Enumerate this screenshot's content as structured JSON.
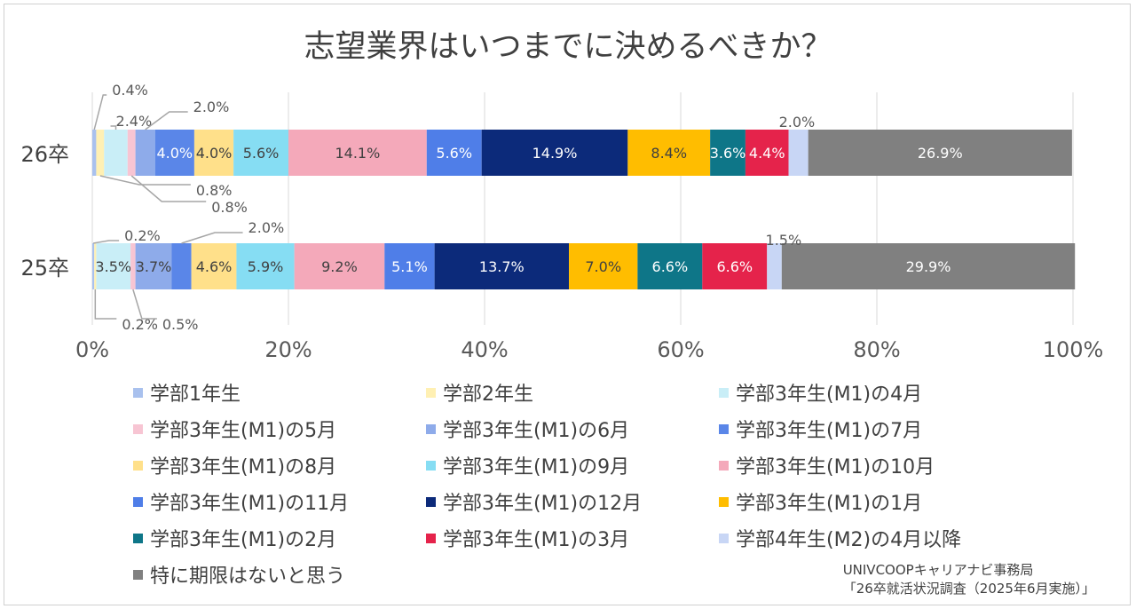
{
  "source_lines": [
    "UNIVCOOPキャリアナビ事務局",
    "「26卒就活状況調査（2025年6月実施）」"
  ],
  "chart_data": {
    "type": "bar",
    "orientation": "horizontal",
    "stacked": true,
    "title": "志望業界はいつまでに決めるべきか？",
    "categories": [
      "26卒",
      "25卒"
    ],
    "x_ticks": [
      "0%",
      "20%",
      "40%",
      "60%",
      "80%",
      "100%"
    ],
    "xlim": [
      0,
      100
    ],
    "grid": "vertical",
    "legend_position": "bottom",
    "series": [
      {
        "name": "学部1年生",
        "color": "#A9C1EE",
        "values": [
          0.4,
          0.2
        ],
        "labels": [
          "0.4%",
          "0.2%"
        ],
        "legend_label": "学部1年生"
      },
      {
        "name": "学部2年生",
        "color": "#FFF0B3",
        "values": [
          0.8,
          0.2
        ],
        "labels": [
          "0.8%",
          "0.2%"
        ],
        "legend_label": "学部2年生"
      },
      {
        "name": "学部3年生(M1)の4月",
        "color": "#C9EEF7",
        "values": [
          2.4,
          3.5
        ],
        "labels": [
          "2.4%",
          "3.5%"
        ],
        "legend_label": "学部3年生(M1)の4月"
      },
      {
        "name": "学部3年生(M1)の5月",
        "color": "#F7C5D3",
        "values": [
          0.8,
          0.5
        ],
        "labels": [
          "0.8%",
          "0.5%"
        ],
        "legend_label": "学部3年生(M1)の5月"
      },
      {
        "name": "学部3年生(M1)の6月",
        "color": "#8EABEA",
        "values": [
          2.0,
          3.7
        ],
        "labels": [
          "2.0%",
          "3.7%"
        ],
        "legend_label": "学部3年生(M1)の6月"
      },
      {
        "name": "学部3年生(M1)の7月",
        "color": "#5A86E8",
        "values": [
          4.0,
          2.0
        ],
        "labels": [
          "4.0%",
          "2.0%"
        ],
        "legend_label": "学部3年生(M1)の7月"
      },
      {
        "name": "学部3年生(M1)の8月",
        "color": "#FFE08A",
        "values": [
          4.0,
          4.6
        ],
        "labels": [
          "4.0%",
          "4.6%"
        ],
        "legend_label": "学部3年生(M1)の8月"
      },
      {
        "name": "学部3年生(M1)の9月",
        "color": "#86DDF3",
        "values": [
          5.6,
          5.9
        ],
        "labels": [
          "5.6%",
          "5.9%"
        ],
        "legend_label": "学部3年生(M1)の9月"
      },
      {
        "name": "学部3年生(M1)の10月",
        "color": "#F4A9BA",
        "values": [
          14.1,
          9.2
        ],
        "labels": [
          "14.1%",
          "9.2%"
        ],
        "legend_label": "学部3年生(M1)の10月"
      },
      {
        "name": "学部3年生(M1)の11月",
        "color": "#4F7EE8",
        "values": [
          5.6,
          5.1
        ],
        "labels": [
          "5.6%",
          "5.1%"
        ],
        "legend_label": "学部3年生(M1)の11月"
      },
      {
        "name": "学部3年生(M1)の12月",
        "color": "#0C2A7A",
        "values": [
          14.9,
          13.7
        ],
        "labels": [
          "14.9%",
          "13.7%"
        ],
        "legend_label": "学部3年生(M1)の12月"
      },
      {
        "name": "学部3年生(M1)の1月",
        "color": "#FFBD00",
        "values": [
          8.4,
          7.0
        ],
        "labels": [
          "8.4%",
          "7.0%"
        ],
        "legend_label": "学部3年生(M1)の1月"
      },
      {
        "name": "学部3年生(M1)の2月",
        "color": "#0E7688",
        "values": [
          3.6,
          6.6
        ],
        "labels": [
          "3.6%",
          "6.6%"
        ],
        "legend_label": "学部3年生(M1)の2月"
      },
      {
        "name": "学部3年生(M1)の3月",
        "color": "#E5234B",
        "values": [
          4.4,
          6.6
        ],
        "labels": [
          "4.4%",
          "6.6%"
        ],
        "legend_label": "学部3年生(M1)の3月"
      },
      {
        "name": "学部4年生(M2)の4月以降",
        "color": "#C8D6F5",
        "values": [
          2.0,
          1.5
        ],
        "labels": [
          "2.0%",
          "1.5%"
        ],
        "legend_label": "学部4年生(M2)の4月以降"
      },
      {
        "name": "特に期限はないと思う",
        "color": "#808080",
        "values": [
          26.9,
          29.9
        ],
        "labels": [
          "26.9%",
          "29.9%"
        ],
        "legend_label": "特に期限はないと思う"
      }
    ]
  }
}
